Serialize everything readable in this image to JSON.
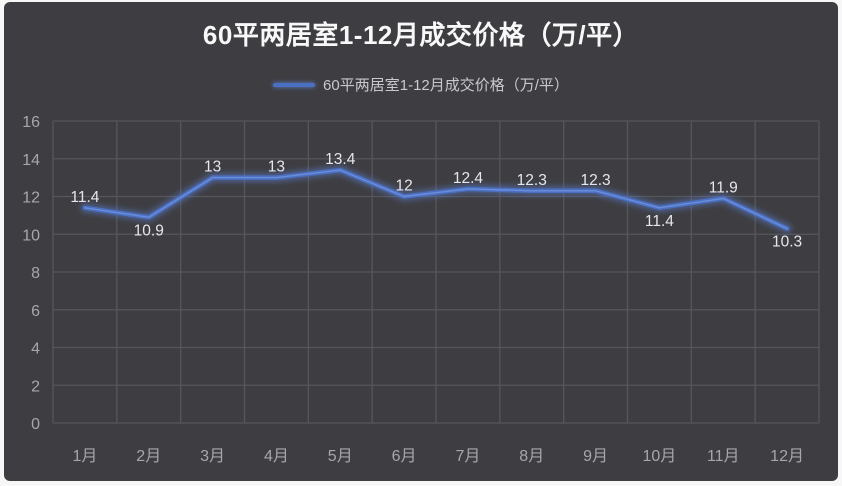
{
  "window": {
    "page_bg_color": "#f7f7f7",
    "card_bg_color": "#3e3e42"
  },
  "chart_data": {
    "type": "line",
    "title": "60平两居室1-12月成交价格（万/平）",
    "legend": {
      "label": "60平两居室1-12月成交价格（万/平）",
      "position": "top"
    },
    "categories": [
      "1月",
      "2月",
      "3月",
      "4月",
      "5月",
      "6月",
      "7月",
      "8月",
      "9月",
      "10月",
      "11月",
      "12月"
    ],
    "series": [
      {
        "name": "60平两居室1-12月成交价格（万/平）",
        "values": [
          11.4,
          10.9,
          13,
          13,
          13.4,
          12,
          12.4,
          12.3,
          12.3,
          11.4,
          11.9,
          10.3
        ],
        "color": "#4a70c4",
        "data_labels_shown": true,
        "label_placement": [
          "above",
          "below",
          "above",
          "above",
          "above",
          "above",
          "above",
          "above",
          "above",
          "below",
          "above",
          "below"
        ]
      }
    ],
    "xlabel": "",
    "ylabel": "",
    "ylim": [
      0,
      16
    ],
    "ytick_step": 2,
    "grid": true,
    "colors": {
      "grid": "#56565b",
      "tick_label": "#a7a7ab",
      "data_label": "#e6e6ec",
      "title": "#f8f8f8",
      "legend_label": "#c9c9cd",
      "line": "#4a70c4",
      "line_glow": "#5d80d6",
      "line_highlight": "#7b9ae0"
    }
  }
}
